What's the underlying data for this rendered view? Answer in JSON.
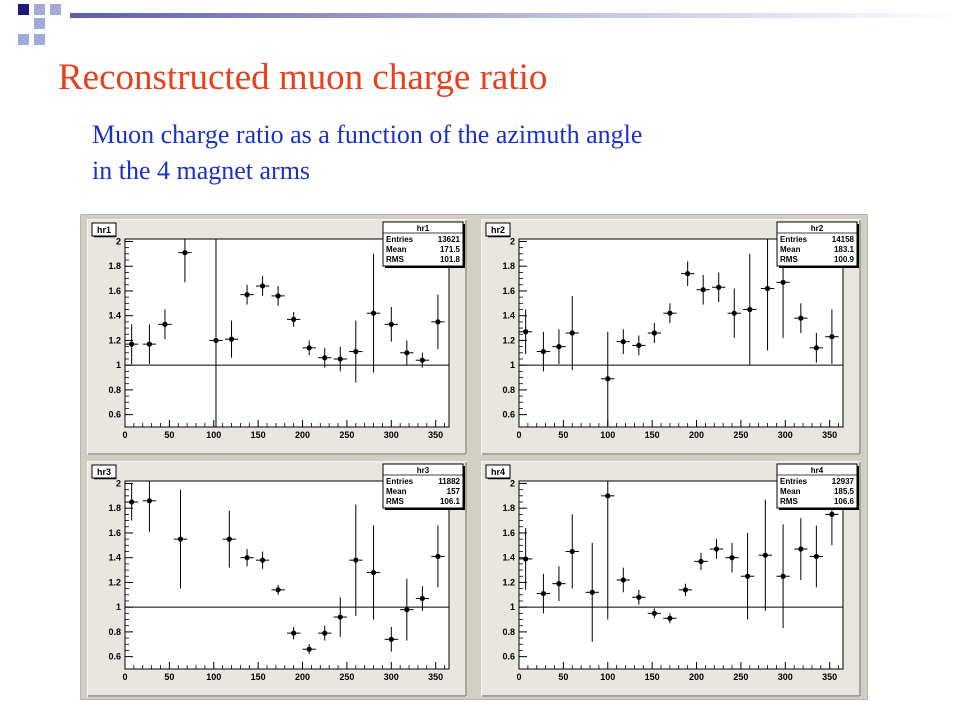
{
  "slide": {
    "title": "Reconstructed muon charge ratio",
    "subtitle_line1": "Muon charge ratio as a function of the azimuth angle",
    "subtitle_line2": "in the 4 magnet arms",
    "colors": {
      "title": "#e8401c",
      "subtitle": "#1a31c8",
      "deco_dark": "#1b1b7a",
      "deco_light": "#a4a9dc",
      "figure_bg": "#d2cec4"
    }
  },
  "chart_data": [
    {
      "type": "scatter",
      "name": "hr1",
      "stats": {
        "header": "hr1",
        "entries_label": "Entries",
        "entries": "13621",
        "mean_label": "Mean",
        "mean": "171.5",
        "rms_label": "RMS",
        "rms": "101.8"
      },
      "xlim": [
        0,
        365
      ],
      "ylim": [
        0.5,
        2.02
      ],
      "xticks": [
        "0",
        "50",
        "100",
        "150",
        "200",
        "250",
        "300",
        "350"
      ],
      "yticks": [
        "0.6",
        "0.8",
        "1",
        "1.2",
        "1.4",
        "1.6",
        "1.8",
        "2"
      ],
      "reference_line": 1,
      "points": [
        {
          "x": 7.5,
          "y": 1.17,
          "xerr": 7.5,
          "yerr": 0.16
        },
        {
          "x": 27.5,
          "y": 1.17,
          "xerr": 7.5,
          "yerr": 0.16
        },
        {
          "x": 45,
          "y": 1.33,
          "xerr": 7.5,
          "yerr": 0.12
        },
        {
          "x": 67.5,
          "y": 1.91,
          "xerr": 7.5,
          "yerr": 0.24
        },
        {
          "x": 102.5,
          "y": 1.2,
          "xerr": 7.5,
          "yerr": 1.0
        },
        {
          "x": 120,
          "y": 1.21,
          "xerr": 7.5,
          "yerr": 0.15
        },
        {
          "x": 137.5,
          "y": 1.57,
          "xerr": 7.5,
          "yerr": 0.08
        },
        {
          "x": 155,
          "y": 1.64,
          "xerr": 7.5,
          "yerr": 0.08
        },
        {
          "x": 172.5,
          "y": 1.56,
          "xerr": 7.5,
          "yerr": 0.08
        },
        {
          "x": 190,
          "y": 1.37,
          "xerr": 7.5,
          "yerr": 0.06
        },
        {
          "x": 207.5,
          "y": 1.14,
          "xerr": 7.5,
          "yerr": 0.06
        },
        {
          "x": 225,
          "y": 1.06,
          "xerr": 7.5,
          "yerr": 0.08
        },
        {
          "x": 242.5,
          "y": 1.05,
          "xerr": 7.5,
          "yerr": 0.1
        },
        {
          "x": 260,
          "y": 1.11,
          "xerr": 7.5,
          "yerr": 0.25
        },
        {
          "x": 280,
          "y": 1.42,
          "xerr": 7.5,
          "yerr": 0.48
        },
        {
          "x": 300,
          "y": 1.33,
          "xerr": 7.5,
          "yerr": 0.14
        },
        {
          "x": 317.5,
          "y": 1.1,
          "xerr": 7.5,
          "yerr": 0.1
        },
        {
          "x": 335,
          "y": 1.04,
          "xerr": 7.5,
          "yerr": 0.06
        },
        {
          "x": 352.5,
          "y": 1.35,
          "xerr": 7.5,
          "yerr": 0.22
        }
      ]
    },
    {
      "type": "scatter",
      "name": "hr2",
      "stats": {
        "header": "hr2",
        "entries_label": "Entries",
        "entries": "14158",
        "mean_label": "Mean",
        "mean": "183.1",
        "rms_label": "RMS",
        "rms": "100.9"
      },
      "xlim": [
        0,
        365
      ],
      "ylim": [
        0.5,
        2.02
      ],
      "xticks": [
        "0",
        "50",
        "100",
        "150",
        "200",
        "250",
        "300",
        "350"
      ],
      "yticks": [
        "0.6",
        "0.8",
        "1",
        "1.2",
        "1.4",
        "1.6",
        "1.8",
        "2"
      ],
      "reference_line": 1,
      "points": [
        {
          "x": 7.5,
          "y": 1.27,
          "xerr": 7.5,
          "yerr": 0.18
        },
        {
          "x": 27.5,
          "y": 1.11,
          "xerr": 7.5,
          "yerr": 0.16
        },
        {
          "x": 45,
          "y": 1.15,
          "xerr": 7.5,
          "yerr": 0.14
        },
        {
          "x": 60,
          "y": 1.26,
          "xerr": 7.5,
          "yerr": 0.3
        },
        {
          "x": 100,
          "y": 0.89,
          "xerr": 7.5,
          "yerr": 0.38
        },
        {
          "x": 117.5,
          "y": 1.19,
          "xerr": 7.5,
          "yerr": 0.1
        },
        {
          "x": 135,
          "y": 1.16,
          "xerr": 7.5,
          "yerr": 0.08
        },
        {
          "x": 152.5,
          "y": 1.26,
          "xerr": 7.5,
          "yerr": 0.08
        },
        {
          "x": 170,
          "y": 1.42,
          "xerr": 7.5,
          "yerr": 0.08
        },
        {
          "x": 190,
          "y": 1.74,
          "xerr": 7.5,
          "yerr": 0.1
        },
        {
          "x": 207.5,
          "y": 1.61,
          "xerr": 7.5,
          "yerr": 0.12
        },
        {
          "x": 225,
          "y": 1.63,
          "xerr": 7.5,
          "yerr": 0.12
        },
        {
          "x": 242.5,
          "y": 1.42,
          "xerr": 7.5,
          "yerr": 0.2
        },
        {
          "x": 260,
          "y": 1.45,
          "xerr": 7.5,
          "yerr": 0.45
        },
        {
          "x": 280,
          "y": 1.62,
          "xerr": 7.5,
          "yerr": 0.5
        },
        {
          "x": 297.5,
          "y": 1.67,
          "xerr": 7.5,
          "yerr": 0.45
        },
        {
          "x": 317.5,
          "y": 1.38,
          "xerr": 7.5,
          "yerr": 0.12
        },
        {
          "x": 335,
          "y": 1.14,
          "xerr": 7.5,
          "yerr": 0.12
        },
        {
          "x": 352.5,
          "y": 1.23,
          "xerr": 7.5,
          "yerr": 0.22
        }
      ]
    },
    {
      "type": "scatter",
      "name": "hr3",
      "stats": {
        "header": "hr3",
        "entries_label": "Entries",
        "entries": "11882",
        "mean_label": "Mean",
        "mean": "157",
        "rms_label": "RMS",
        "rms": "106.1"
      },
      "xlim": [
        0,
        365
      ],
      "ylim": [
        0.5,
        2.02
      ],
      "xticks": [
        "0",
        "50",
        "100",
        "150",
        "200",
        "250",
        "300",
        "350"
      ],
      "yticks": [
        "0.6",
        "0.8",
        "1",
        "1.2",
        "1.4",
        "1.6",
        "1.8",
        "2"
      ],
      "reference_line": 1,
      "points": [
        {
          "x": 7.5,
          "y": 1.85,
          "xerr": 7.5,
          "yerr": 0.15
        },
        {
          "x": 27.5,
          "y": 1.86,
          "xerr": 7.5,
          "yerr": 0.25
        },
        {
          "x": 62.5,
          "y": 1.55,
          "xerr": 7.5,
          "yerr": 0.4
        },
        {
          "x": 117.5,
          "y": 1.55,
          "xerr": 7.5,
          "yerr": 0.23
        },
        {
          "x": 137.5,
          "y": 1.4,
          "xerr": 7.5,
          "yerr": 0.07
        },
        {
          "x": 155,
          "y": 1.38,
          "xerr": 7.5,
          "yerr": 0.07
        },
        {
          "x": 172.5,
          "y": 1.14,
          "xerr": 7.5,
          "yerr": 0.04
        },
        {
          "x": 190,
          "y": 0.79,
          "xerr": 7.5,
          "yerr": 0.05
        },
        {
          "x": 207.5,
          "y": 0.66,
          "xerr": 7.5,
          "yerr": 0.04
        },
        {
          "x": 225,
          "y": 0.79,
          "xerr": 7.5,
          "yerr": 0.06
        },
        {
          "x": 242.5,
          "y": 0.92,
          "xerr": 7.5,
          "yerr": 0.16
        },
        {
          "x": 260,
          "y": 1.38,
          "xerr": 7.5,
          "yerr": 0.45
        },
        {
          "x": 280,
          "y": 1.28,
          "xerr": 7.5,
          "yerr": 0.38
        },
        {
          "x": 300,
          "y": 0.74,
          "xerr": 7.5,
          "yerr": 0.1
        },
        {
          "x": 317.5,
          "y": 0.98,
          "xerr": 7.5,
          "yerr": 0.25
        },
        {
          "x": 335,
          "y": 1.07,
          "xerr": 7.5,
          "yerr": 0.1
        },
        {
          "x": 352.5,
          "y": 1.41,
          "xerr": 7.5,
          "yerr": 0.25
        }
      ]
    },
    {
      "type": "scatter",
      "name": "hr4",
      "stats": {
        "header": "hr4",
        "entries_label": "Entries",
        "entries": "12937",
        "mean_label": "Mean",
        "mean": "185.5",
        "rms_label": "RMS",
        "rms": "106.6"
      },
      "xlim": [
        0,
        365
      ],
      "ylim": [
        0.5,
        2.02
      ],
      "xticks": [
        "0",
        "50",
        "100",
        "150",
        "200",
        "250",
        "300",
        "350"
      ],
      "yticks": [
        "0.6",
        "0.8",
        "1",
        "1.2",
        "1.4",
        "1.6",
        "1.8",
        "2"
      ],
      "reference_line": 1,
      "points": [
        {
          "x": 7.5,
          "y": 1.39,
          "xerr": 7.5,
          "yerr": 0.25
        },
        {
          "x": 27.5,
          "y": 1.11,
          "xerr": 7.5,
          "yerr": 0.16
        },
        {
          "x": 45,
          "y": 1.19,
          "xerr": 7.5,
          "yerr": 0.14
        },
        {
          "x": 60,
          "y": 1.45,
          "xerr": 7.5,
          "yerr": 0.3
        },
        {
          "x": 82.5,
          "y": 1.12,
          "xerr": 7.5,
          "yerr": 0.4
        },
        {
          "x": 100,
          "y": 1.9,
          "xerr": 7.5,
          "yerr": 1.0
        },
        {
          "x": 117.5,
          "y": 1.22,
          "xerr": 7.5,
          "yerr": 0.1
        },
        {
          "x": 135,
          "y": 1.08,
          "xerr": 7.5,
          "yerr": 0.06
        },
        {
          "x": 152.5,
          "y": 0.95,
          "xerr": 7.5,
          "yerr": 0.04
        },
        {
          "x": 170,
          "y": 0.91,
          "xerr": 7.5,
          "yerr": 0.04
        },
        {
          "x": 187.5,
          "y": 1.14,
          "xerr": 7.5,
          "yerr": 0.05
        },
        {
          "x": 205,
          "y": 1.37,
          "xerr": 7.5,
          "yerr": 0.07
        },
        {
          "x": 222.5,
          "y": 1.47,
          "xerr": 7.5,
          "yerr": 0.08
        },
        {
          "x": 240,
          "y": 1.4,
          "xerr": 7.5,
          "yerr": 0.12
        },
        {
          "x": 257.5,
          "y": 1.25,
          "xerr": 7.5,
          "yerr": 0.35
        },
        {
          "x": 277.5,
          "y": 1.42,
          "xerr": 7.5,
          "yerr": 0.45
        },
        {
          "x": 297.5,
          "y": 1.25,
          "xerr": 7.5,
          "yerr": 0.42
        },
        {
          "x": 317.5,
          "y": 1.47,
          "xerr": 7.5,
          "yerr": 0.25
        },
        {
          "x": 335,
          "y": 1.41,
          "xerr": 7.5,
          "yerr": 0.25
        },
        {
          "x": 352.5,
          "y": 1.75,
          "xerr": 7.5,
          "yerr": 0.25
        }
      ]
    }
  ]
}
